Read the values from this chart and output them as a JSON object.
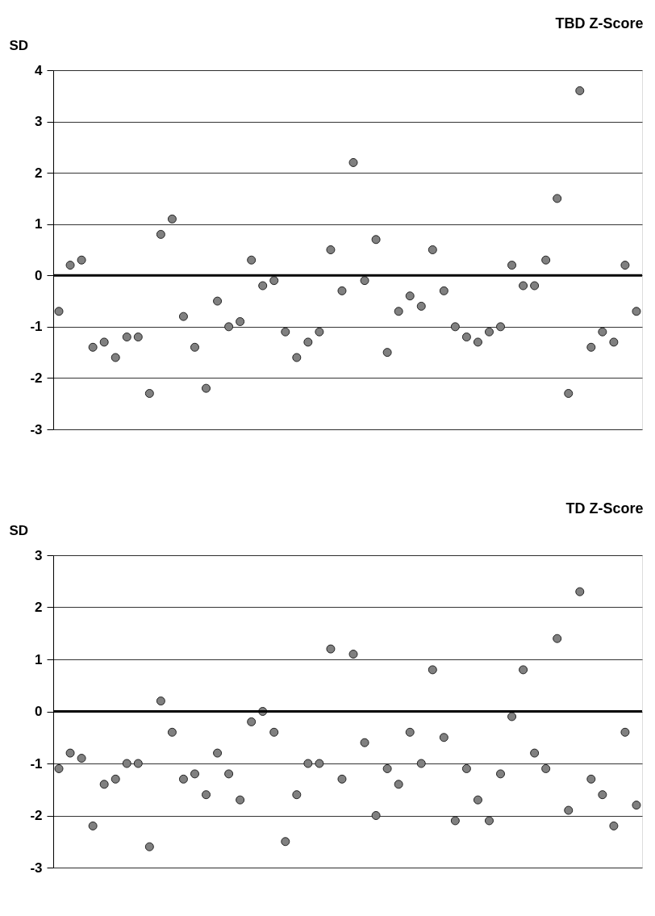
{
  "chart_data": [
    {
      "type": "scatter",
      "title": "TBD Z-Score",
      "ylabel": "SD",
      "categories": [
        null,
        null,
        null,
        null,
        null,
        null,
        null,
        null,
        null,
        null,
        null,
        null,
        null,
        null,
        null,
        null,
        null,
        null,
        null,
        null,
        null,
        null,
        null,
        null,
        null,
        null,
        null,
        null,
        null,
        null,
        null,
        null,
        null,
        null,
        null,
        null,
        null,
        null,
        null,
        null,
        null,
        null,
        null,
        null,
        null,
        null,
        null,
        null,
        null,
        null,
        null,
        null
      ],
      "series": [
        {
          "color": "#808080",
          "values": [
            -0.7,
            0.2,
            0.3,
            -1.4,
            -1.3,
            -1.6,
            -1.2,
            -1.2,
            -2.3,
            0.8,
            1.1,
            -0.8,
            -1.4,
            -2.2,
            -0.5,
            -1.0,
            -0.9,
            0.3,
            -0.2,
            -0.1,
            -1.1,
            -1.6,
            -1.3,
            -1.1,
            0.5,
            -0.3,
            2.2,
            -0.1,
            0.7,
            -1.5,
            -0.7,
            -0.4,
            -0.6,
            0.5,
            -0.3,
            -1.0,
            -1.2,
            -1.3,
            -1.1,
            -1.0,
            0.2,
            -0.2,
            -0.2,
            0.3,
            1.5,
            -2.3,
            3.6,
            -1.4,
            -1.1,
            -1.3,
            0.2,
            -0.7
          ]
        }
      ],
      "ylim": [
        -3,
        4
      ],
      "yticks": [
        -3,
        -2,
        -1,
        0,
        1,
        2,
        3,
        4
      ],
      "grid": "y",
      "marker": "circle",
      "tick_labels": "y",
      "legend": false,
      "ref_lines": [
        {
          "axis": "y",
          "value": 0,
          "color": "#000000"
        }
      ]
    },
    {
      "type": "scatter",
      "title": "TD Z-Score",
      "ylabel": "SD",
      "categories": [
        null,
        null,
        null,
        null,
        null,
        null,
        null,
        null,
        null,
        null,
        null,
        null,
        null,
        null,
        null,
        null,
        null,
        null,
        null,
        null,
        null,
        null,
        null,
        null,
        null,
        null,
        null,
        null,
        null,
        null,
        null,
        null,
        null,
        null,
        null,
        null,
        null,
        null,
        null,
        null,
        null,
        null,
        null,
        null,
        null,
        null,
        null,
        null,
        null,
        null,
        null,
        null
      ],
      "series": [
        {
          "color": "#808080",
          "values": [
            -1.1,
            -0.8,
            -0.9,
            -2.2,
            -1.4,
            -1.3,
            -1.0,
            -1.0,
            -2.6,
            0.2,
            -0.4,
            -1.3,
            -1.2,
            -1.6,
            -0.8,
            -1.2,
            -1.7,
            -0.2,
            0.0,
            -0.4,
            -2.5,
            -1.6,
            -1.0,
            -1.0,
            1.2,
            -1.3,
            1.1,
            -0.6,
            -2.0,
            -1.1,
            -1.4,
            -0.4,
            -1.0,
            0.8,
            -0.5,
            -2.1,
            -1.1,
            -1.7,
            -2.1,
            -1.2,
            -0.1,
            0.8,
            -0.8,
            -1.1,
            1.4,
            -1.9,
            2.3,
            -1.3,
            -1.6,
            -2.2,
            -0.4,
            -1.8
          ]
        }
      ],
      "ylim": [
        -3,
        3
      ],
      "yticks": [
        -3,
        -2,
        -1,
        0,
        1,
        2,
        3
      ],
      "grid": "y",
      "marker": "circle",
      "tick_labels": "y",
      "legend": false,
      "ref_lines": [
        {
          "axis": "y",
          "value": 0,
          "color": "#000000"
        }
      ]
    }
  ]
}
